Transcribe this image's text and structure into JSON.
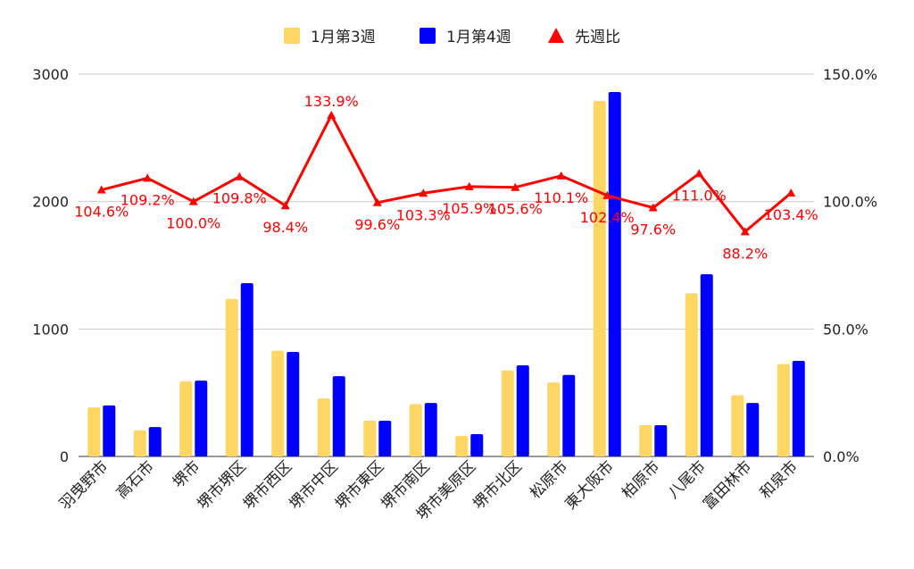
{
  "chart_data": {
    "type": "bar",
    "categories": [
      "羽曳野市",
      "高石市",
      "堺市",
      "堺市堺区",
      "堺市西区",
      "堺市中区",
      "堺市東区",
      "堺市南区",
      "堺市美原区",
      "堺市北区",
      "松原市",
      "東大阪市",
      "柏原市",
      "八尾市",
      "富田林市",
      "和泉市"
    ],
    "series": [
      {
        "name": "1月第3週",
        "type": "bar",
        "axis": "left",
        "color": "#FDD663",
        "values": [
          385,
          205,
          590,
          1235,
          830,
          455,
          280,
          410,
          160,
          675,
          580,
          2790,
          245,
          1280,
          480,
          725
        ]
      },
      {
        "name": "1月第4週",
        "type": "bar",
        "axis": "left",
        "color": "#0000FF",
        "values": [
          400,
          230,
          595,
          1360,
          820,
          630,
          280,
          420,
          175,
          715,
          640,
          2860,
          245,
          1430,
          420,
          750
        ]
      },
      {
        "name": "先週比",
        "type": "line",
        "axis": "right",
        "color": "#FF0000",
        "values": [
          104.6,
          109.2,
          100.0,
          109.8,
          98.4,
          133.9,
          99.6,
          103.3,
          105.9,
          105.6,
          110.1,
          102.4,
          97.6,
          111.0,
          88.2,
          103.4
        ],
        "labels": [
          "104.6%",
          "109.2%",
          "100.0%",
          "109.8%",
          "98.4%",
          "133.9%",
          "99.6%",
          "103.3%",
          "105.9%",
          "105.6%",
          "110.1%",
          "102.4%",
          "97.6%",
          "111.0%",
          "88.2%",
          "103.4%"
        ]
      }
    ],
    "y_left": {
      "min": 0,
      "max": 3000,
      "ticks": [
        0,
        1000,
        2000,
        3000
      ],
      "tick_labels": [
        "0",
        "1000",
        "2000",
        "3000"
      ]
    },
    "y_right": {
      "min": 0,
      "max": 150,
      "ticks": [
        0,
        50,
        100,
        150
      ],
      "tick_labels": [
        "0.0%",
        "50.0%",
        "100.0%",
        "150.0%"
      ]
    },
    "grid": true,
    "legend_position": "top"
  }
}
